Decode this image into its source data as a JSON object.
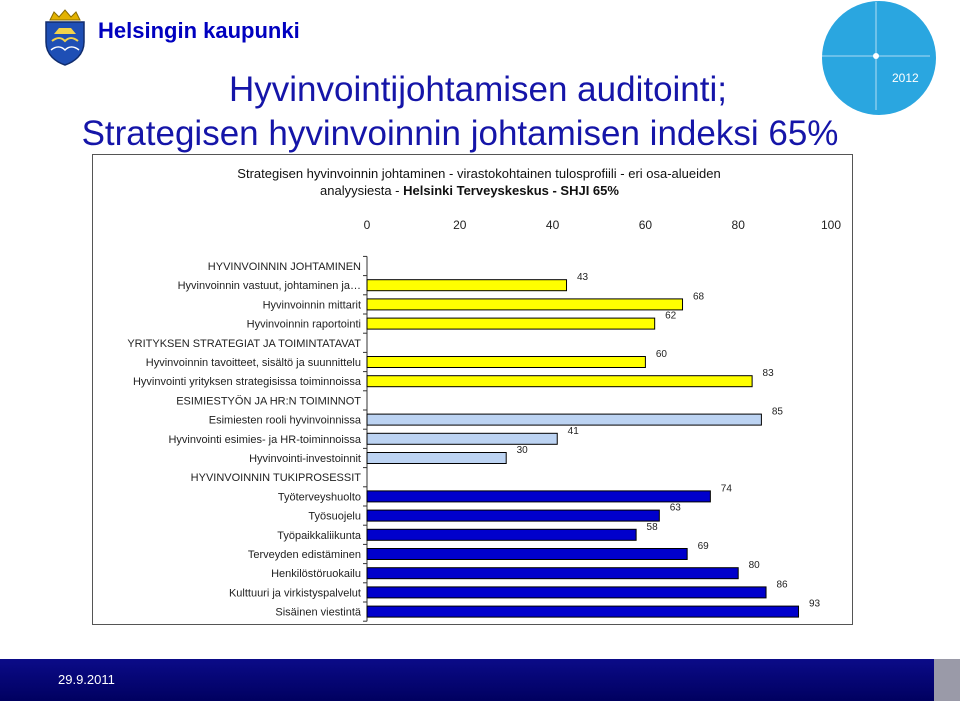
{
  "header": {
    "brand": "Helsingin kaupunki",
    "badge_text": "2012"
  },
  "title": {
    "line1": "Hyvinvointijohtamisen auditointi;",
    "line2": "Strategisen hyvinvoinnin johtamisen indeksi 65%"
  },
  "chart_data": {
    "type": "bar",
    "orientation": "horizontal",
    "subtitle_line1": "Strategisen hyvinvoinnin johtaminen - virastokohtainen tulosprofiili - eri osa-alueiden",
    "subtitle_line2_regular": "analyysiesta - ",
    "subtitle_line2_bold": "Helsinki Terveyskeskus - SHJI 65%",
    "xlim": [
      0,
      100
    ],
    "xticks": [
      "0",
      "20",
      "40",
      "60",
      "80",
      "100"
    ],
    "grid": false,
    "legend": "none",
    "colors": {
      "johtaminen": "#ffff00",
      "strategiat": "#ffff00",
      "esimiestyo": "#bcd3f2",
      "tukiprosessit": "#0000cc",
      "bar_border": "#000000"
    },
    "categories": [
      {
        "label": "HYVINVOINNIN JOHTAMINEN",
        "value": null,
        "group": "johtaminen"
      },
      {
        "label": "Hyvinvoinnin vastuut, johtaminen ja…",
        "value": 43,
        "group": "johtaminen"
      },
      {
        "label": "Hyvinvoinnin mittarit",
        "value": 68,
        "group": "johtaminen"
      },
      {
        "label": "Hyvinvoinnin raportointi",
        "value": 62,
        "group": "johtaminen"
      },
      {
        "label": "YRITYKSEN STRATEGIAT JA TOIMINTATAVAT",
        "value": null,
        "group": "strategiat"
      },
      {
        "label": "Hyvinvoinnin tavoitteet, sisältö ja suunnittelu",
        "value": 60,
        "group": "strategiat"
      },
      {
        "label": "Hyvinvointi yrityksen strategisissa toiminnoissa",
        "value": 83,
        "group": "strategiat"
      },
      {
        "label": "ESIMIESTYÖN JA HR:N TOIMINNOT",
        "value": null,
        "group": "esimiestyo"
      },
      {
        "label": "Esimiesten rooli hyvinvoinnissa",
        "value": 85,
        "group": "esimiestyo"
      },
      {
        "label": "Hyvinvointi esimies- ja HR-toiminnoissa",
        "value": 41,
        "group": "esimiestyo"
      },
      {
        "label": "Hyvinvointi-investoinnit",
        "value": 30,
        "group": "esimiestyo"
      },
      {
        "label": "HYVINVOINNIN TUKIPROSESSIT",
        "value": null,
        "group": "tukiprosessit"
      },
      {
        "label": "Työterveyshuolto",
        "value": 74,
        "group": "tukiprosessit"
      },
      {
        "label": "Työsuojelu",
        "value": 63,
        "group": "tukiprosessit"
      },
      {
        "label": "Työpaikkaliikunta",
        "value": 58,
        "group": "tukiprosessit"
      },
      {
        "label": "Terveyden edistäminen",
        "value": 69,
        "group": "tukiprosessit"
      },
      {
        "label": "Henkilöstöruokailu",
        "value": 80,
        "group": "tukiprosessit"
      },
      {
        "label": "Kulttuuri ja virkistyspalvelut",
        "value": 86,
        "group": "tukiprosessit"
      },
      {
        "label": "Sisäinen viestintä",
        "value": 93,
        "group": "tukiprosessit"
      }
    ]
  },
  "footer": {
    "date": "29.9.2011"
  }
}
